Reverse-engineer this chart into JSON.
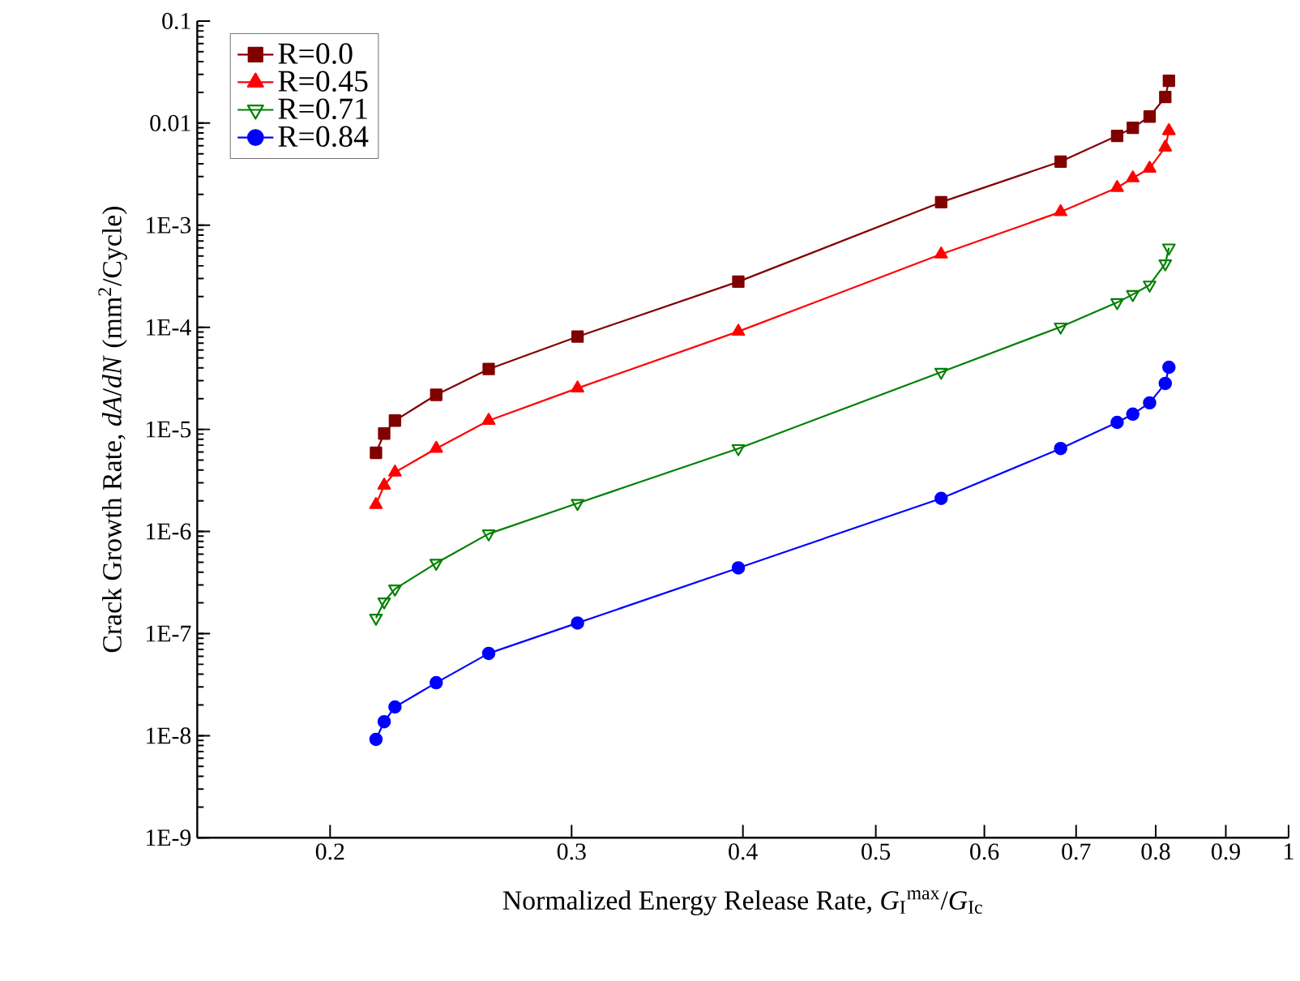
{
  "chart_data": {
    "type": "line",
    "xlabel": "Normalized Energy Release Rate, *G*$_{I}$$^{max}$/*G*$_{Ic}$",
    "ylabel": "Crack Growth Rate, *dA*/*dN* (mm$^{2}$/Cycle)",
    "log": "xy",
    "legend": "top left",
    "grid": false,
    "line_style": "solid",
    "xlim": [
      0.16,
      1
    ],
    "ylim": [
      1e-09,
      0.1
    ],
    "xticks": [
      0.2,
      0.3,
      0.4,
      0.5,
      0.6,
      0.7,
      0.8,
      0.9,
      1
    ],
    "yticks": [
      {
        "value": 1e-09,
        "label": "1E-9"
      },
      {
        "value": 1e-08,
        "label": "1E-8"
      },
      {
        "value": 1e-07,
        "label": "1E-7"
      },
      {
        "value": 1e-06,
        "label": "1E-6"
      },
      {
        "value": 1e-05,
        "label": "1E-5"
      },
      {
        "value": 0.0001,
        "label": "1E-4"
      },
      {
        "value": 0.001,
        "label": "1E-3"
      },
      0.01,
      0.1
    ],
    "x": [
      0.216,
      0.219,
      0.223,
      0.239,
      0.261,
      0.303,
      0.397,
      0.558,
      0.682,
      0.75,
      0.77,
      0.792,
      0.813,
      0.818
    ],
    "series": [
      {
        "name": "R=0.0",
        "color": "#800000",
        "marker": "square",
        "values": [
          5.9e-06,
          9.1e-06,
          1.22e-05,
          2.18e-05,
          3.9e-05,
          8.1e-05,
          0.00028,
          0.00168,
          0.0042,
          0.0075,
          0.009,
          0.0116,
          0.018,
          0.026
        ]
      },
      {
        "name": "R=0.45",
        "color": "#ff0000",
        "marker": "triangle",
        "values": [
          1.83e-06,
          2.83e-06,
          3.8e-06,
          6.5e-06,
          1.22e-05,
          2.53e-05,
          9.1e-05,
          0.00052,
          0.00135,
          0.00233,
          0.0029,
          0.0036,
          0.0058,
          0.0084
        ]
      },
      {
        "name": "R=0.71",
        "color": "#008000",
        "marker": "triangle-down-open",
        "values": [
          1.42e-07,
          2.05e-07,
          2.74e-07,
          4.9e-07,
          9.5e-07,
          1.89e-06,
          6.5e-06,
          3.64e-05,
          0.000101,
          0.000175,
          0.00021,
          0.00026,
          0.00042,
          0.0006
        ]
      },
      {
        "name": "R=0.84",
        "color": "#0000ff",
        "marker": "circle",
        "values": [
          9.2e-09,
          1.37e-08,
          1.91e-08,
          3.3e-08,
          6.4e-08,
          1.27e-07,
          4.4e-07,
          2.11e-06,
          6.5e-06,
          1.17e-05,
          1.41e-05,
          1.82e-05,
          2.82e-05,
          4.06e-05
        ]
      }
    ]
  }
}
